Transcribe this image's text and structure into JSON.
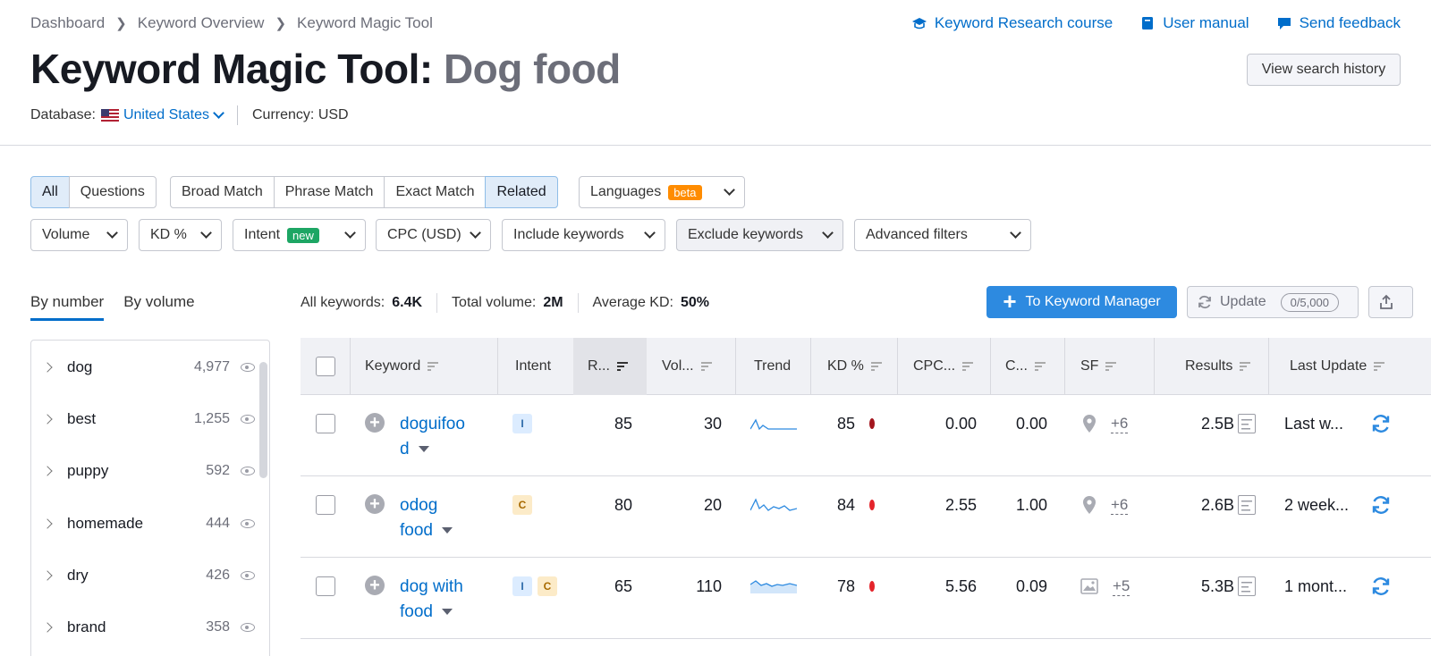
{
  "breadcrumb": [
    "Dashboard",
    "Keyword Overview",
    "Keyword Magic Tool"
  ],
  "toplinks": {
    "course": "Keyword Research course",
    "manual": "User manual",
    "feedback": "Send feedback"
  },
  "title": {
    "main": "Keyword Magic Tool:",
    "query": "Dog food"
  },
  "history_button": "View search history",
  "database": {
    "label": "Database:",
    "value": "United States",
    "currency_label": "Currency:",
    "currency": "USD"
  },
  "match_tabs": {
    "all": "All",
    "questions": "Questions",
    "broad": "Broad Match",
    "phrase": "Phrase Match",
    "exact": "Exact Match",
    "related": "Related"
  },
  "languages": {
    "label": "Languages",
    "badge": "beta"
  },
  "filters": {
    "volume": "Volume",
    "kd": "KD %",
    "intent": "Intent",
    "intent_badge": "new",
    "cpc": "CPC (USD)",
    "include": "Include keywords",
    "exclude": "Exclude keywords",
    "advanced": "Advanced filters"
  },
  "group_tabs": {
    "by_number": "By number",
    "by_volume": "By volume"
  },
  "groups": [
    {
      "name": "dog",
      "count": "4,977"
    },
    {
      "name": "best",
      "count": "1,255"
    },
    {
      "name": "puppy",
      "count": "592"
    },
    {
      "name": "homemade",
      "count": "444"
    },
    {
      "name": "dry",
      "count": "426"
    },
    {
      "name": "brand",
      "count": "358"
    }
  ],
  "stats": {
    "all_label": "All keywords:",
    "all_value": "6.4K",
    "vol_label": "Total volume:",
    "vol_value": "2M",
    "kd_label": "Average KD:",
    "kd_value": "50%"
  },
  "actions": {
    "to_manager": "To Keyword Manager",
    "update": "Update",
    "update_quota": "0/5,000"
  },
  "columns": {
    "keyword": "Keyword",
    "intent": "Intent",
    "rank": "R...",
    "volume": "Vol...",
    "trend": "Trend",
    "kd": "KD %",
    "cpc": "CPC...",
    "com": "C...",
    "sf": "SF",
    "results": "Results",
    "last_update": "Last Update"
  },
  "rows": [
    {
      "keyword": "doguifood",
      "kw1": "doguifoo",
      "kw2": "d",
      "intents": [
        "I"
      ],
      "rank": "85",
      "volume": "30",
      "kd": "85",
      "kd_color": "#a3151e",
      "cpc": "0.00",
      "com": "0.00",
      "sf": "+6",
      "sf_icon": "map-pin-icon",
      "results": "2.5B",
      "last_update": "Last w..."
    },
    {
      "keyword": "odog food",
      "kw1": "odog",
      "kw2": "food",
      "intents": [
        "C"
      ],
      "rank": "80",
      "volume": "20",
      "kd": "84",
      "kd_color": "#e4242b",
      "cpc": "2.55",
      "com": "1.00",
      "sf": "+6",
      "sf_icon": "map-pin-icon",
      "results": "2.6B",
      "last_update": "2 week..."
    },
    {
      "keyword": "dog with food",
      "kw1": "dog with",
      "kw2": "food",
      "intents": [
        "I",
        "C"
      ],
      "rank": "65",
      "volume": "110",
      "kd": "78",
      "kd_color": "#e4242b",
      "cpc": "5.56",
      "com": "0.09",
      "sf": "+5",
      "sf_icon": "image-icon",
      "results": "5.3B",
      "last_update": "1 mont..."
    }
  ],
  "colors": {
    "accent": "#006dca",
    "primary_button": "#2d8ae0",
    "beta": "#ff8c00",
    "new": "#1da664"
  }
}
